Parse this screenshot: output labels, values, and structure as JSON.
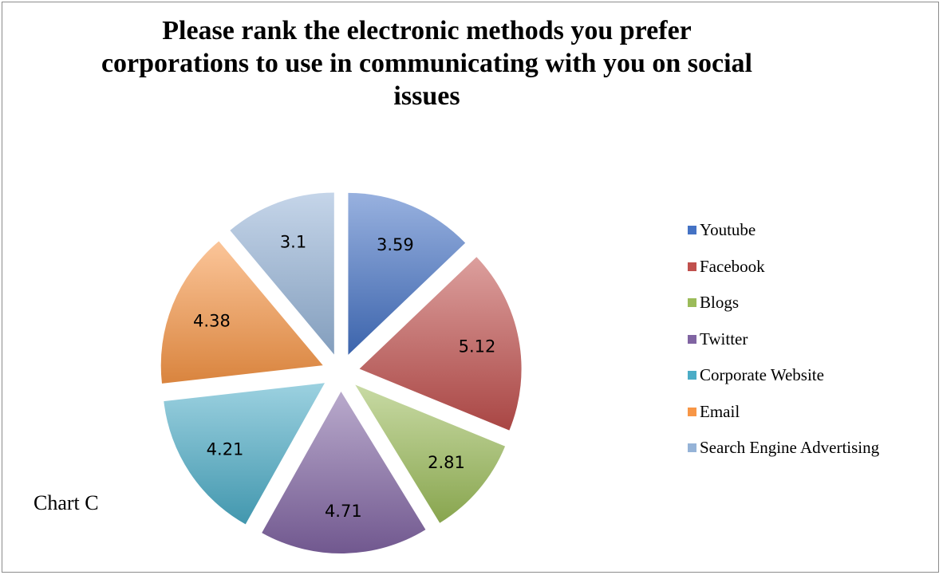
{
  "chart_data": {
    "type": "pie",
    "title_lines": [
      "Please rank the electronic methods you prefer",
      "corporations to use in communicating with you on social",
      "issues"
    ],
    "categories": [
      "Youtube",
      "Facebook",
      "Blogs",
      "Twitter",
      "Corporate Website",
      "Email",
      "Search Engine Advertising"
    ],
    "values": [
      3.59,
      5.12,
      2.81,
      4.71,
      4.21,
      4.38,
      3.1
    ],
    "data_labels": [
      "3.59",
      "5.12",
      "2.81",
      "4.71",
      "4.21",
      "4.38",
      "3.1"
    ],
    "colors": [
      "#4472c4",
      "#c0504d",
      "#9bbb59",
      "#8064a2",
      "#4bacc6",
      "#f79646",
      "#95b3d7"
    ],
    "legend_position": "right",
    "exploded": true
  },
  "footnote": "Chart C"
}
